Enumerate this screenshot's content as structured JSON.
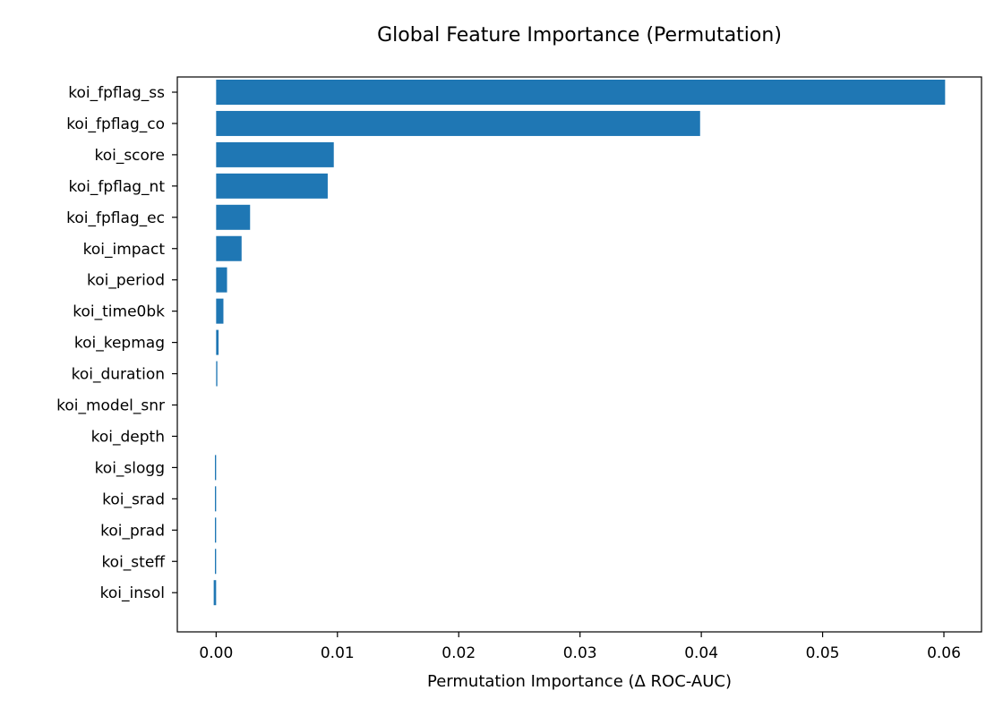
{
  "chart_data": {
    "type": "bar",
    "orientation": "horizontal",
    "title": "Global Feature Importance (Permutation)",
    "xlabel": "Permutation Importance (Δ ROC-AUC)",
    "ylabel": "",
    "categories": [
      "koi_fpflag_ss",
      "koi_fpflag_co",
      "koi_score",
      "koi_fpflag_nt",
      "koi_fpflag_ec",
      "koi_impact",
      "koi_period",
      "koi_time0bk",
      "koi_kepmag",
      "koi_duration",
      "koi_model_snr",
      "koi_depth",
      "koi_slogg",
      "koi_srad",
      "koi_prad",
      "koi_steff",
      "koi_insol"
    ],
    "values": [
      0.0601,
      0.0399,
      0.0097,
      0.0092,
      0.0028,
      0.0021,
      0.0009,
      0.0006,
      0.0002,
      0.0001,
      0.0,
      0.0,
      -0.0001,
      -0.0001,
      -0.0001,
      -0.0001,
      -0.0002
    ],
    "xlim": [
      -0.0032,
      0.0631
    ],
    "xticks": [
      0.0,
      0.01,
      0.02,
      0.03,
      0.04,
      0.05,
      0.06
    ],
    "xtick_labels": [
      "0.00",
      "0.01",
      "0.02",
      "0.03",
      "0.04",
      "0.05",
      "0.06"
    ],
    "bar_color": "#1f77b4",
    "grid": false,
    "legend": "none"
  }
}
